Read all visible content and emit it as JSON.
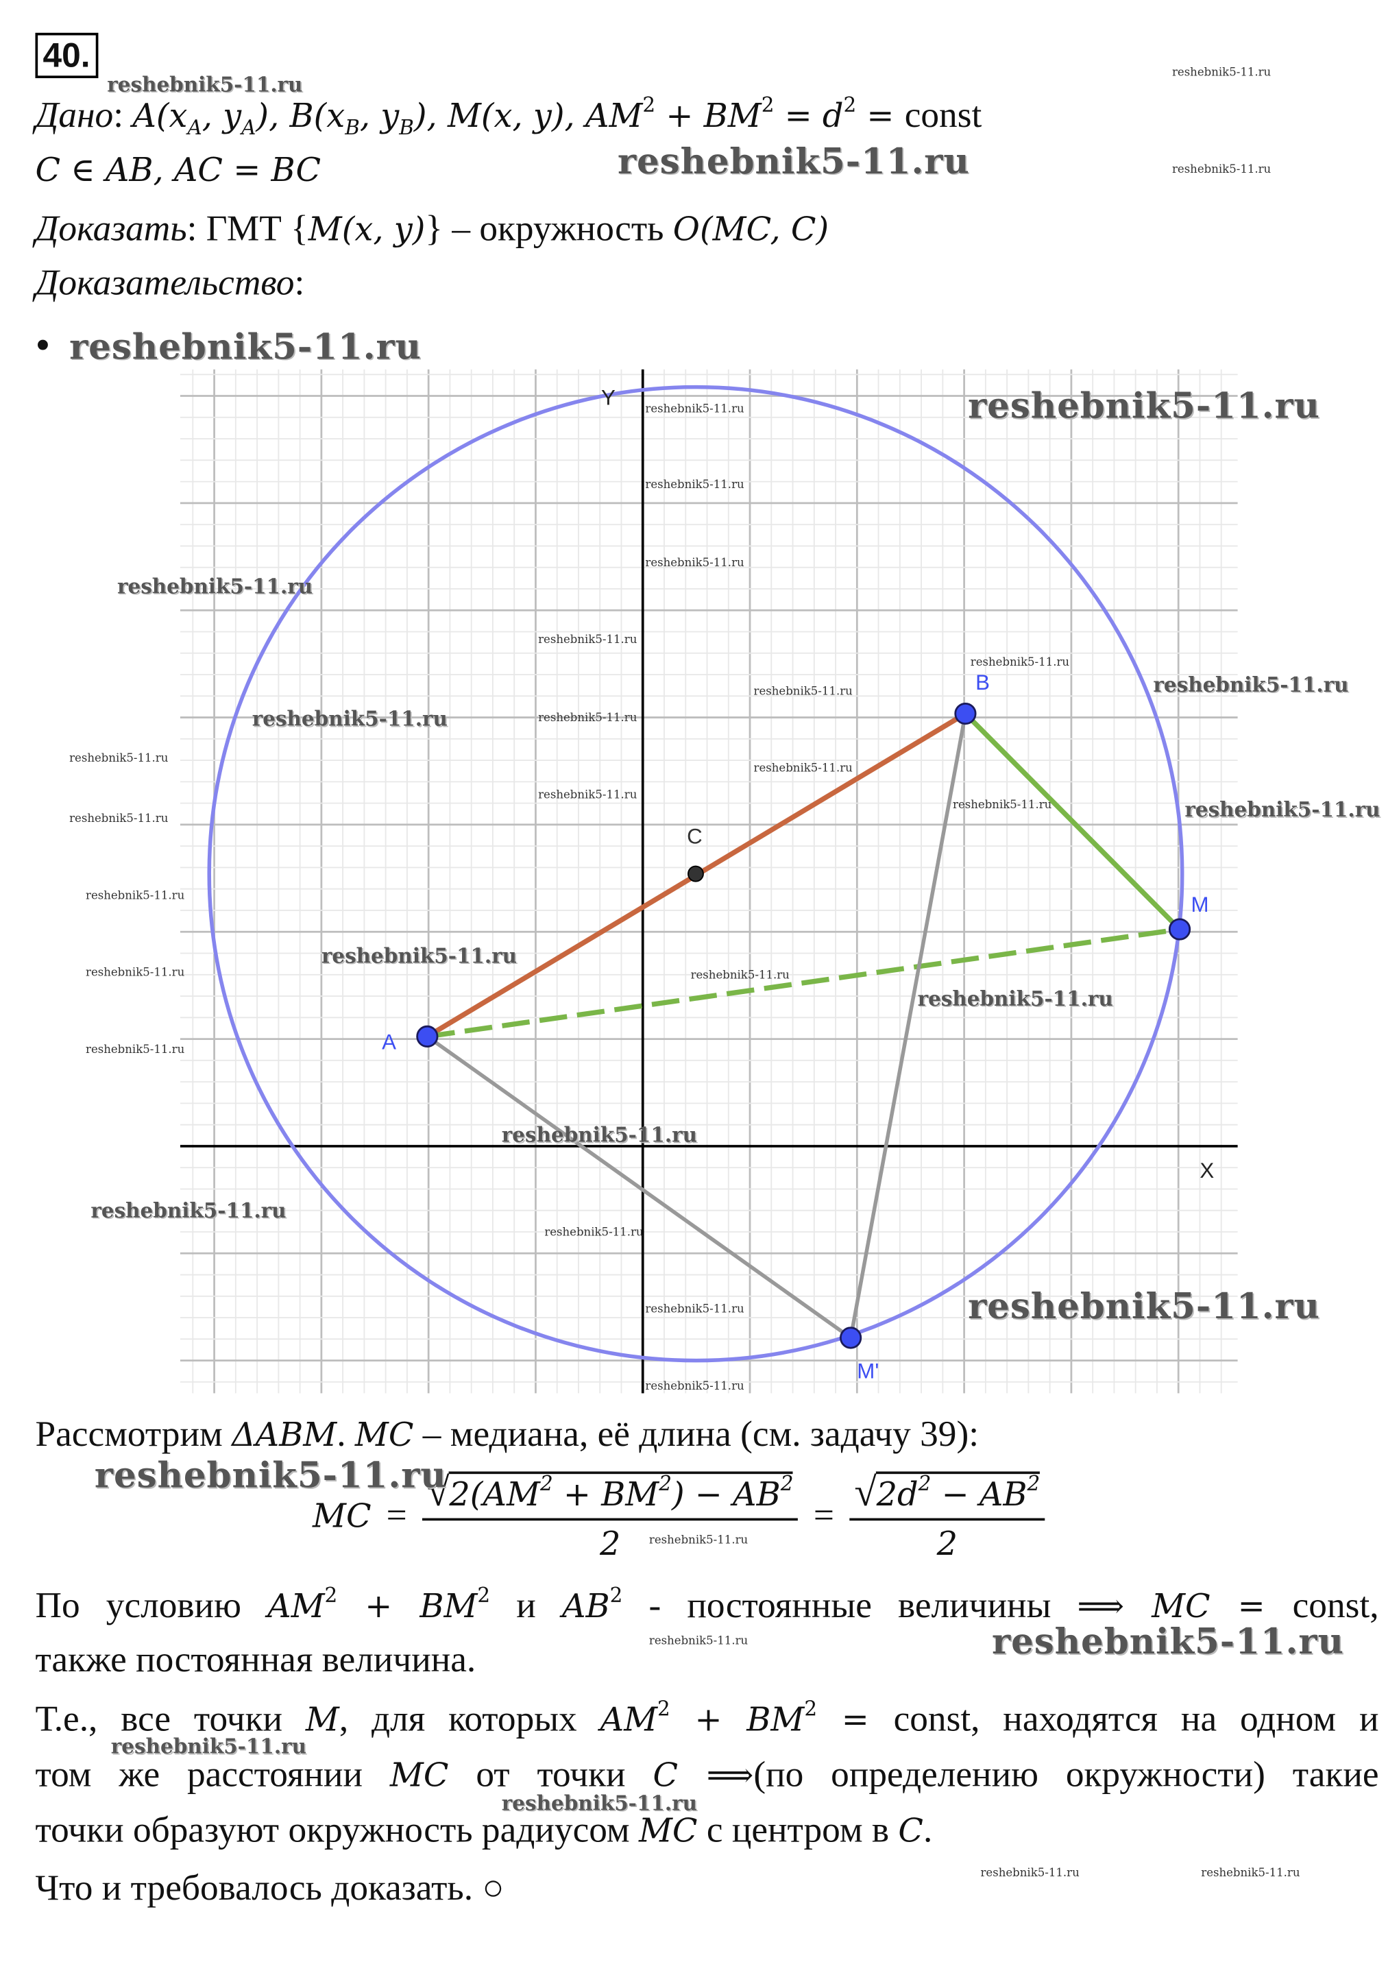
{
  "problem_number": "40.",
  "watermark": "reshebnik5-11.ru",
  "header_lines": [
    [
      {
        "i": "Дано"
      },
      ": ",
      {
        "m": "A(x"
      },
      {
        "sub": "A"
      },
      {
        "m": ", y"
      },
      {
        "sub": "A"
      },
      {
        "m": "), B(x"
      },
      {
        "sub": "B"
      },
      {
        "m": ", y"
      },
      {
        "sub": "B"
      },
      {
        "m": "), M(x, y),  AM"
      },
      {
        "sup": "2"
      },
      {
        "m": " + BM"
      },
      {
        "sup": "2"
      },
      {
        "m": " = d"
      },
      {
        "sup": "2"
      },
      {
        "m": " = "
      },
      "const"
    ],
    [
      {
        "m": "C ∈ AB, AC = BC"
      }
    ],
    [
      {
        "i": "Доказать"
      },
      ": ГМТ {",
      {
        "m": "M(x, y)"
      },
      "} – окружность ",
      {
        "m": "O(MC, C)"
      }
    ],
    [
      {
        "i": "Доказательство"
      },
      ":"
    ]
  ],
  "bullet": "•",
  "figure_labels": {
    "Y": "Y",
    "X": "X",
    "A": "A",
    "B": "B",
    "C": "C",
    "M": "M",
    "M1": "M'"
  },
  "intro": [
    "Рассмотрим ",
    {
      "m": "ΔABM"
    },
    ". ",
    {
      "m": "MC"
    },
    " – медиана, её длина (см. задачу 39):"
  ],
  "formula": {
    "lhs": "MC",
    "eq": "=",
    "root": "√",
    "radicand1": [
      "2(AM",
      {
        "sup": "2"
      },
      " + BM",
      {
        "sup": "2"
      },
      ") − AB",
      {
        "sup": "2"
      }
    ],
    "radicand2": [
      "2d",
      {
        "sup": "2"
      },
      " − AB",
      {
        "sup": "2"
      }
    ],
    "denominator": "2"
  },
  "body_lines": [
    [
      "По условию ",
      {
        "m": "AM"
      },
      {
        "sup": "2"
      },
      {
        "m": " + BM"
      },
      {
        "sup": "2"
      },
      " и ",
      {
        "m": "AB"
      },
      {
        "sup": "2"
      },
      " - постоянные величины ",
      {
        "m": "⟹ MC = "
      },
      "const,"
    ],
    [
      "также постоянная величина."
    ],
    [
      "Т.е., все точки ",
      {
        "m": "M"
      },
      ", для которых ",
      {
        "m": "AM"
      },
      {
        "sup": "2"
      },
      {
        "m": " + BM"
      },
      {
        "sup": "2"
      },
      {
        "m": " = "
      },
      "const, находятся на одном и"
    ],
    [
      "том же расстоянии ",
      {
        "m": "MC"
      },
      " от точки ",
      {
        "m": "C ⟹"
      },
      "(по определению окружности) такие"
    ],
    [
      "точки образуют окружность радиусом ",
      {
        "m": "MC"
      },
      " с центром в ",
      {
        "m": "C"
      },
      "."
    ],
    [
      "Что и требовалось доказать. ○"
    ]
  ]
}
